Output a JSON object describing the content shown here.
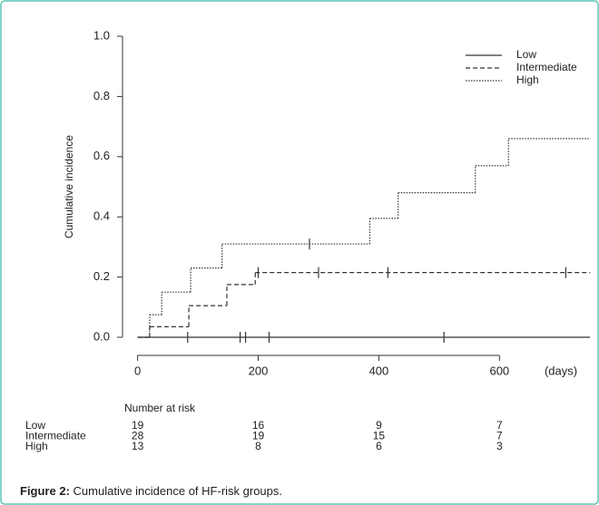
{
  "chart_data": {
    "type": "step",
    "y_label": "Cumulative incidence",
    "x_unit_label": "(days)",
    "xlim": [
      -25,
      750
    ],
    "ylim": [
      0,
      1
    ],
    "xticks": [
      0,
      200,
      400,
      600
    ],
    "yticks": [
      {
        "value": 0,
        "label": "0.0"
      },
      {
        "value": 0.2,
        "label": "0.2"
      },
      {
        "value": 0.4,
        "label": "0.4"
      },
      {
        "value": 0.6,
        "label": "0.6"
      },
      {
        "value": 0.8,
        "label": "0.8"
      },
      {
        "value": 1,
        "label": "1.0"
      }
    ],
    "legend": "top-right",
    "series": [
      {
        "name": "Low",
        "color": "#333333",
        "dash": "solid",
        "x": [
          0,
          750
        ],
        "values": [
          0,
          0
        ],
        "censor_x": [
          83,
          170,
          179,
          218,
          508
        ],
        "censor_values": [
          0,
          0,
          0,
          0,
          0
        ]
      },
      {
        "name": "Intermediate",
        "color": "#333333",
        "dash": "dashed",
        "x": [
          0,
          20,
          85,
          148,
          195,
          750
        ],
        "values": [
          0,
          0.035,
          0.105,
          0.175,
          0.215,
          0.215
        ],
        "censor_x": [
          200,
          300,
          415,
          710
        ],
        "censor_values": [
          0.215,
          0.215,
          0.215,
          0.215
        ]
      },
      {
        "name": "High",
        "color": "#333333",
        "dash": "dotted",
        "x": [
          0,
          20,
          40,
          88,
          140,
          385,
          432,
          560,
          615,
          750
        ],
        "values": [
          0,
          0.075,
          0.15,
          0.23,
          0.31,
          0.395,
          0.48,
          0.57,
          0.66,
          0.66
        ],
        "censor_x": [
          285
        ],
        "censor_values": [
          0.31
        ]
      }
    ],
    "risk_table": {
      "title": "Number at risk",
      "times": [
        0,
        200,
        400,
        600
      ],
      "rows": [
        {
          "label": "Low",
          "values": [
            19,
            16,
            9,
            7
          ]
        },
        {
          "label": "Intermediate",
          "values": [
            28,
            19,
            15,
            7
          ]
        },
        {
          "label": "High",
          "values": [
            13,
            8,
            6,
            3
          ]
        }
      ]
    }
  },
  "caption": {
    "label": "Figure 2:",
    "text": "Cumulative incidence of HF-risk groups."
  }
}
